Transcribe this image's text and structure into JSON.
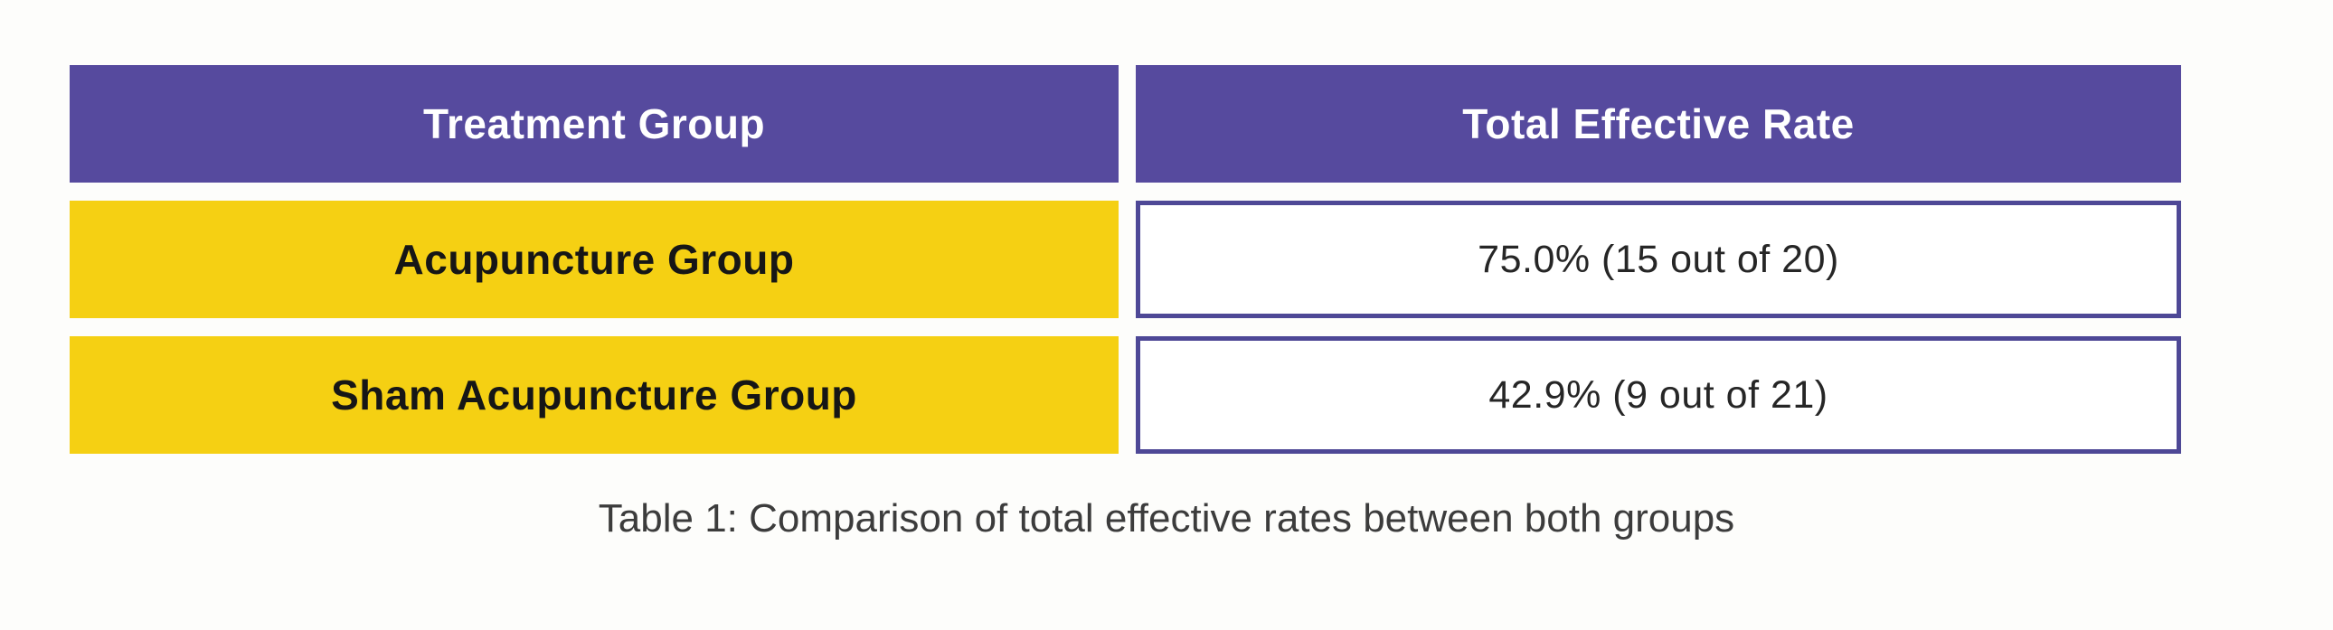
{
  "colors": {
    "header_bg": "#564A9E",
    "header_text": "#FFFFFF",
    "label_bg": "#F5D013",
    "label_text": "#161616",
    "value_border": "#4E4896",
    "value_bg": "#FFFFFF",
    "value_text": "#262626",
    "caption_text": "#3C3C3C",
    "page_bg": "#FDFDFB"
  },
  "table": {
    "headers": [
      {
        "label": "Treatment Group"
      },
      {
        "label": "Total Effective Rate"
      }
    ],
    "rows": [
      {
        "group": "Acupuncture Group",
        "rate": "75.0% (15 out of 20)"
      },
      {
        "group": "Sham Acupuncture Group",
        "rate": "42.9% (9 out of 21)"
      }
    ]
  },
  "caption": "Table 1: Comparison of total effective rates between both groups"
}
